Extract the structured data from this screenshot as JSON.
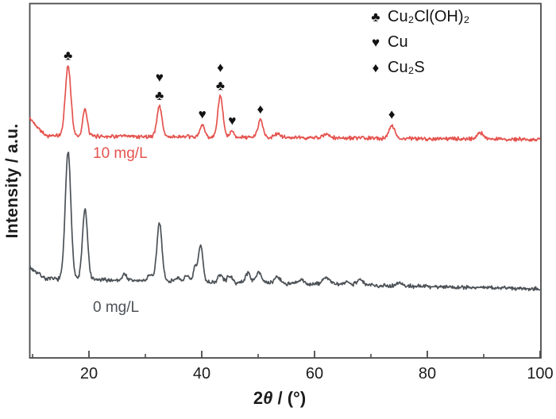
{
  "chart_data": {
    "type": "line",
    "title": "",
    "description": "XRD patterns (intensity vs 2-theta) of samples at 0 mg/L and 10 mg/L, with phase marker symbols",
    "xlabel": {
      "num": "2",
      "theta": "θ",
      "rest": " / (°)"
    },
    "xlabel_plain": "2θ / (°)",
    "ylabel": "Intensity / a.u.",
    "x_axis": {
      "min": 10,
      "max": 100,
      "major_ticks": [
        20,
        40,
        60,
        80,
        100
      ],
      "minor_ticks": [
        10,
        30,
        50,
        70,
        90
      ],
      "tick_labels": [
        "20",
        "40",
        "60",
        "80",
        "100"
      ]
    },
    "y_axis": {
      "label": "Intensity / a.u.",
      "tick_labels": "none",
      "units": "a.u."
    },
    "grid": "off",
    "legend_position": "top-right-inside",
    "colors": {
      "red_series": "#e5534e",
      "gray_series": "#4c5257",
      "axis": "#4a4a4a",
      "text": "#1c1c1c",
      "marker": "#121212",
      "background": "#ffffff"
    },
    "icons": {
      "club": "♣",
      "heart": "♥",
      "diamond": "♦"
    },
    "legend": {
      "items": [
        {
          "icon": "club",
          "label": "Cu₂Cl(OH)₂"
        },
        {
          "icon": "heart",
          "label": "Cu"
        },
        {
          "icon": "diamond",
          "label": "Cu₂S"
        }
      ]
    },
    "series": [
      {
        "name": "10 mg/L",
        "color": "#e5534e",
        "baseline_start_au": 175,
        "baseline_end_au": 172,
        "left_tail_au": 14,
        "noise_au": 1.2,
        "seed": 42,
        "peaks": [
          {
            "two_theta": 16.3,
            "intensity_au": 55,
            "sigma_deg": 0.5
          },
          {
            "two_theta": 19.3,
            "intensity_au": 21,
            "sigma_deg": 0.4
          },
          {
            "two_theta": 32.5,
            "intensity_au": 24,
            "sigma_deg": 0.45
          },
          {
            "two_theta": 40.1,
            "intensity_au": 9.5,
            "sigma_deg": 0.4
          },
          {
            "two_theta": 43.3,
            "intensity_au": 32,
            "sigma_deg": 0.45
          },
          {
            "two_theta": 45.4,
            "intensity_au": 4.5,
            "sigma_deg": 0.4
          },
          {
            "two_theta": 50.4,
            "intensity_au": 14,
            "sigma_deg": 0.45
          },
          {
            "two_theta": 53.5,
            "intensity_au": 3,
            "sigma_deg": 0.5
          },
          {
            "two_theta": 62.0,
            "intensity_au": 2.5,
            "sigma_deg": 0.6
          },
          {
            "two_theta": 73.7,
            "intensity_au": 10.5,
            "sigma_deg": 0.5
          },
          {
            "two_theta": 89.4,
            "intensity_au": 5,
            "sigma_deg": 0.6
          }
        ]
      },
      {
        "name": "0 mg/L",
        "color": "#4c5257",
        "baseline_start_au": 62.5,
        "baseline_end_au": 54.5,
        "left_tail_au": 9,
        "noise_au": 1.3,
        "seed": 7,
        "peaks": [
          {
            "two_theta": 16.3,
            "intensity_au": 100,
            "sigma_deg": 0.5
          },
          {
            "two_theta": 19.3,
            "intensity_au": 55,
            "sigma_deg": 0.45
          },
          {
            "two_theta": 26.3,
            "intensity_au": 5,
            "sigma_deg": 0.4
          },
          {
            "two_theta": 30.8,
            "intensity_au": 5,
            "sigma_deg": 0.4
          },
          {
            "two_theta": 32.5,
            "intensity_au": 46,
            "sigma_deg": 0.45
          },
          {
            "two_theta": 35.5,
            "intensity_au": 3,
            "sigma_deg": 0.4
          },
          {
            "two_theta": 37.3,
            "intensity_au": 5.5,
            "sigma_deg": 0.35
          },
          {
            "two_theta": 38.8,
            "intensity_au": 11,
            "sigma_deg": 0.3
          },
          {
            "two_theta": 39.8,
            "intensity_au": 29,
            "sigma_deg": 0.4
          },
          {
            "two_theta": 43.3,
            "intensity_au": 6,
            "sigma_deg": 0.4
          },
          {
            "two_theta": 44.9,
            "intensity_au": 5.5,
            "sigma_deg": 0.4
          },
          {
            "two_theta": 48.2,
            "intensity_au": 8,
            "sigma_deg": 0.45
          },
          {
            "two_theta": 50.1,
            "intensity_au": 9.5,
            "sigma_deg": 0.45
          },
          {
            "two_theta": 53.4,
            "intensity_au": 5.5,
            "sigma_deg": 0.5
          },
          {
            "two_theta": 57.6,
            "intensity_au": 3,
            "sigma_deg": 0.5
          },
          {
            "two_theta": 62.1,
            "intensity_au": 5.5,
            "sigma_deg": 0.65
          },
          {
            "two_theta": 65.8,
            "intensity_au": 2.5,
            "sigma_deg": 0.5
          },
          {
            "two_theta": 68.0,
            "intensity_au": 4.5,
            "sigma_deg": 0.55
          },
          {
            "two_theta": 75.0,
            "intensity_au": 2.5,
            "sigma_deg": 0.5
          }
        ]
      }
    ],
    "annotations": [
      {
        "series": "10 mg/L",
        "x": 16.3,
        "symbols": [
          "club"
        ]
      },
      {
        "series": "10 mg/L",
        "x": 32.5,
        "symbols": [
          "club",
          "heart"
        ]
      },
      {
        "series": "10 mg/L",
        "x": 40.1,
        "symbols": [
          "heart"
        ]
      },
      {
        "series": "10 mg/L",
        "x": 43.3,
        "symbols": [
          "club",
          "diamond"
        ]
      },
      {
        "series": "10 mg/L",
        "x": 45.4,
        "symbols": [
          "heart"
        ]
      },
      {
        "series": "10 mg/L",
        "x": 50.4,
        "symbols": [
          "diamond"
        ]
      },
      {
        "series": "10 mg/L",
        "x": 73.7,
        "symbols": [
          "diamond"
        ]
      }
    ]
  }
}
